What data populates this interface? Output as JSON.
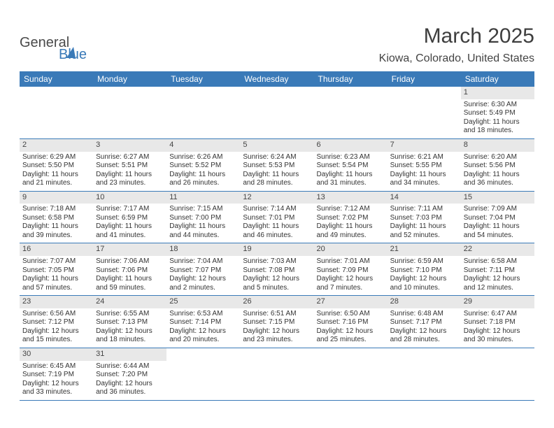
{
  "brand": {
    "name_a": "General",
    "name_b": "Blue"
  },
  "title": "March 2025",
  "location": "Kiowa, Colorado, United States",
  "headers": [
    "Sunday",
    "Monday",
    "Tuesday",
    "Wednesday",
    "Thursday",
    "Friday",
    "Saturday"
  ],
  "colors": {
    "header_bg": "#3a7ab8",
    "header_fg": "#ffffff",
    "daynum_bg": "#e8e8e8",
    "rule": "#3a7ab8",
    "text": "#333333"
  },
  "font": {
    "family": "Arial",
    "body_size_pt": 7.5,
    "header_size_pt": 9,
    "title_size_pt": 22
  },
  "weeks": [
    [
      null,
      null,
      null,
      null,
      null,
      null,
      {
        "d": "1",
        "sr": "Sunrise: 6:30 AM",
        "ss": "Sunset: 5:49 PM",
        "dl1": "Daylight: 11 hours",
        "dl2": "and 18 minutes."
      }
    ],
    [
      {
        "d": "2",
        "sr": "Sunrise: 6:29 AM",
        "ss": "Sunset: 5:50 PM",
        "dl1": "Daylight: 11 hours",
        "dl2": "and 21 minutes."
      },
      {
        "d": "3",
        "sr": "Sunrise: 6:27 AM",
        "ss": "Sunset: 5:51 PM",
        "dl1": "Daylight: 11 hours",
        "dl2": "and 23 minutes."
      },
      {
        "d": "4",
        "sr": "Sunrise: 6:26 AM",
        "ss": "Sunset: 5:52 PM",
        "dl1": "Daylight: 11 hours",
        "dl2": "and 26 minutes."
      },
      {
        "d": "5",
        "sr": "Sunrise: 6:24 AM",
        "ss": "Sunset: 5:53 PM",
        "dl1": "Daylight: 11 hours",
        "dl2": "and 28 minutes."
      },
      {
        "d": "6",
        "sr": "Sunrise: 6:23 AM",
        "ss": "Sunset: 5:54 PM",
        "dl1": "Daylight: 11 hours",
        "dl2": "and 31 minutes."
      },
      {
        "d": "7",
        "sr": "Sunrise: 6:21 AM",
        "ss": "Sunset: 5:55 PM",
        "dl1": "Daylight: 11 hours",
        "dl2": "and 34 minutes."
      },
      {
        "d": "8",
        "sr": "Sunrise: 6:20 AM",
        "ss": "Sunset: 5:56 PM",
        "dl1": "Daylight: 11 hours",
        "dl2": "and 36 minutes."
      }
    ],
    [
      {
        "d": "9",
        "sr": "Sunrise: 7:18 AM",
        "ss": "Sunset: 6:58 PM",
        "dl1": "Daylight: 11 hours",
        "dl2": "and 39 minutes."
      },
      {
        "d": "10",
        "sr": "Sunrise: 7:17 AM",
        "ss": "Sunset: 6:59 PM",
        "dl1": "Daylight: 11 hours",
        "dl2": "and 41 minutes."
      },
      {
        "d": "11",
        "sr": "Sunrise: 7:15 AM",
        "ss": "Sunset: 7:00 PM",
        "dl1": "Daylight: 11 hours",
        "dl2": "and 44 minutes."
      },
      {
        "d": "12",
        "sr": "Sunrise: 7:14 AM",
        "ss": "Sunset: 7:01 PM",
        "dl1": "Daylight: 11 hours",
        "dl2": "and 46 minutes."
      },
      {
        "d": "13",
        "sr": "Sunrise: 7:12 AM",
        "ss": "Sunset: 7:02 PM",
        "dl1": "Daylight: 11 hours",
        "dl2": "and 49 minutes."
      },
      {
        "d": "14",
        "sr": "Sunrise: 7:11 AM",
        "ss": "Sunset: 7:03 PM",
        "dl1": "Daylight: 11 hours",
        "dl2": "and 52 minutes."
      },
      {
        "d": "15",
        "sr": "Sunrise: 7:09 AM",
        "ss": "Sunset: 7:04 PM",
        "dl1": "Daylight: 11 hours",
        "dl2": "and 54 minutes."
      }
    ],
    [
      {
        "d": "16",
        "sr": "Sunrise: 7:07 AM",
        "ss": "Sunset: 7:05 PM",
        "dl1": "Daylight: 11 hours",
        "dl2": "and 57 minutes."
      },
      {
        "d": "17",
        "sr": "Sunrise: 7:06 AM",
        "ss": "Sunset: 7:06 PM",
        "dl1": "Daylight: 11 hours",
        "dl2": "and 59 minutes."
      },
      {
        "d": "18",
        "sr": "Sunrise: 7:04 AM",
        "ss": "Sunset: 7:07 PM",
        "dl1": "Daylight: 12 hours",
        "dl2": "and 2 minutes."
      },
      {
        "d": "19",
        "sr": "Sunrise: 7:03 AM",
        "ss": "Sunset: 7:08 PM",
        "dl1": "Daylight: 12 hours",
        "dl2": "and 5 minutes."
      },
      {
        "d": "20",
        "sr": "Sunrise: 7:01 AM",
        "ss": "Sunset: 7:09 PM",
        "dl1": "Daylight: 12 hours",
        "dl2": "and 7 minutes."
      },
      {
        "d": "21",
        "sr": "Sunrise: 6:59 AM",
        "ss": "Sunset: 7:10 PM",
        "dl1": "Daylight: 12 hours",
        "dl2": "and 10 minutes."
      },
      {
        "d": "22",
        "sr": "Sunrise: 6:58 AM",
        "ss": "Sunset: 7:11 PM",
        "dl1": "Daylight: 12 hours",
        "dl2": "and 12 minutes."
      }
    ],
    [
      {
        "d": "23",
        "sr": "Sunrise: 6:56 AM",
        "ss": "Sunset: 7:12 PM",
        "dl1": "Daylight: 12 hours",
        "dl2": "and 15 minutes."
      },
      {
        "d": "24",
        "sr": "Sunrise: 6:55 AM",
        "ss": "Sunset: 7:13 PM",
        "dl1": "Daylight: 12 hours",
        "dl2": "and 18 minutes."
      },
      {
        "d": "25",
        "sr": "Sunrise: 6:53 AM",
        "ss": "Sunset: 7:14 PM",
        "dl1": "Daylight: 12 hours",
        "dl2": "and 20 minutes."
      },
      {
        "d": "26",
        "sr": "Sunrise: 6:51 AM",
        "ss": "Sunset: 7:15 PM",
        "dl1": "Daylight: 12 hours",
        "dl2": "and 23 minutes."
      },
      {
        "d": "27",
        "sr": "Sunrise: 6:50 AM",
        "ss": "Sunset: 7:16 PM",
        "dl1": "Daylight: 12 hours",
        "dl2": "and 25 minutes."
      },
      {
        "d": "28",
        "sr": "Sunrise: 6:48 AM",
        "ss": "Sunset: 7:17 PM",
        "dl1": "Daylight: 12 hours",
        "dl2": "and 28 minutes."
      },
      {
        "d": "29",
        "sr": "Sunrise: 6:47 AM",
        "ss": "Sunset: 7:18 PM",
        "dl1": "Daylight: 12 hours",
        "dl2": "and 30 minutes."
      }
    ],
    [
      {
        "d": "30",
        "sr": "Sunrise: 6:45 AM",
        "ss": "Sunset: 7:19 PM",
        "dl1": "Daylight: 12 hours",
        "dl2": "and 33 minutes."
      },
      {
        "d": "31",
        "sr": "Sunrise: 6:44 AM",
        "ss": "Sunset: 7:20 PM",
        "dl1": "Daylight: 12 hours",
        "dl2": "and 36 minutes."
      },
      null,
      null,
      null,
      null,
      null
    ]
  ]
}
